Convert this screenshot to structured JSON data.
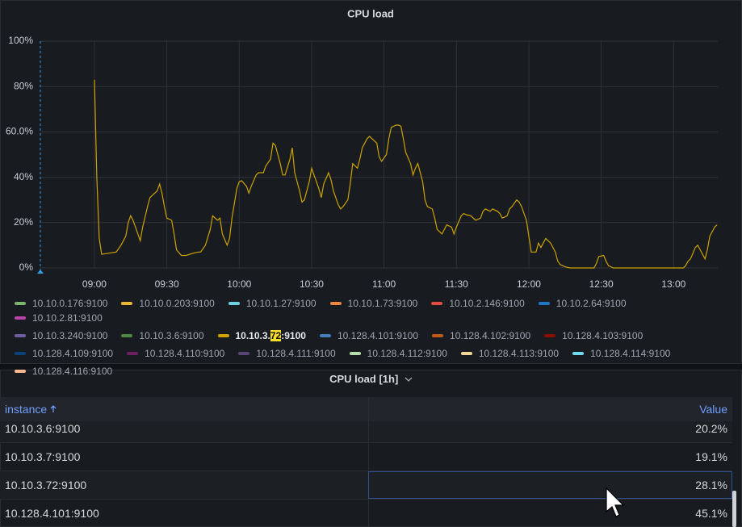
{
  "chart_data": {
    "type": "line",
    "title": "CPU load",
    "xlim": [
      517.6,
      798.3
    ],
    "xticks": [
      {
        "value": 540,
        "label": "09:00"
      },
      {
        "value": 570,
        "label": "09:30"
      },
      {
        "value": 600,
        "label": "10:00"
      },
      {
        "value": 630,
        "label": "10:30"
      },
      {
        "value": 660,
        "label": "11:00"
      },
      {
        "value": 690,
        "label": "11:30"
      },
      {
        "value": 720,
        "label": "12:00"
      },
      {
        "value": 750,
        "label": "12:30"
      },
      {
        "value": 780,
        "label": "13:00"
      }
    ],
    "ylim": [
      0,
      100
    ],
    "yticks": [
      {
        "value": 0,
        "label": "0%"
      },
      {
        "value": 20,
        "label": "20%"
      },
      {
        "value": 40,
        "label": "40%"
      },
      {
        "value": 60,
        "label": "60.0%"
      },
      {
        "value": 80,
        "label": "80%"
      },
      {
        "value": 100,
        "label": "100%"
      }
    ],
    "grid": true,
    "legend_search": "72",
    "series": [
      {
        "name": "10.10.0.176:9100",
        "color": "#7EB26D"
      },
      {
        "name": "10.10.0.203:9100",
        "color": "#EAB839"
      },
      {
        "name": "10.10.1.27:9100",
        "color": "#6ED0E0"
      },
      {
        "name": "10.10.1.73:9100",
        "color": "#EF843C"
      },
      {
        "name": "10.10.2.146:9100",
        "color": "#E24D42"
      },
      {
        "name": "10.10.2.64:9100",
        "color": "#1F78C1"
      },
      {
        "name": "10.10.2.81:9100",
        "color": "#BA43A9"
      },
      {
        "name": "10.10.3.240:9100",
        "color": "#705DA0"
      },
      {
        "name": "10.10.3.6:9100",
        "color": "#508642"
      },
      {
        "name": "10.10.3.72:9100",
        "color": "#CCA300",
        "x": [
          540,
          541,
          542,
          543,
          546,
          549,
          551,
          553,
          554,
          555,
          556,
          558,
          559,
          560,
          562,
          563,
          564,
          566,
          567,
          568,
          569,
          570,
          572,
          573,
          574,
          576,
          578,
          581,
          583,
          584,
          586,
          588,
          589,
          591,
          592,
          593,
          595,
          596,
          597,
          599,
          600,
          601,
          603,
          604,
          605,
          607,
          608,
          610,
          611,
          613,
          614,
          615,
          617,
          618,
          619,
          621,
          622,
          623,
          625,
          626,
          627,
          629,
          630,
          631,
          633,
          634,
          635,
          637,
          638,
          639,
          641,
          642,
          643,
          645,
          646,
          647,
          649,
          650,
          651,
          653,
          654,
          655,
          657,
          658,
          659,
          661,
          662,
          663,
          665,
          666,
          667,
          668,
          669,
          671,
          672,
          673,
          674,
          676,
          677,
          678,
          680,
          681,
          682,
          684,
          685,
          686,
          688,
          689,
          690,
          692,
          693,
          694,
          696,
          697,
          698,
          700,
          701,
          702,
          704,
          705,
          707,
          708,
          709,
          711,
          712,
          713,
          715,
          716,
          717,
          719,
          720,
          721,
          723,
          724,
          725,
          727,
          728,
          729,
          731,
          732,
          733,
          735,
          737,
          747,
          748,
          749,
          751,
          752,
          753,
          755,
          784,
          785,
          786,
          787,
          789,
          790,
          791,
          793,
          794,
          795,
          797,
          798
        ],
        "values": [
          83,
          40,
          13,
          6,
          6.5,
          7,
          10,
          14,
          20,
          23,
          21,
          15,
          12,
          18,
          27,
          31,
          32,
          34,
          37,
          33,
          27,
          22,
          21,
          15,
          8,
          5.5,
          5.5,
          6.5,
          7,
          7,
          10,
          17,
          23,
          21,
          22,
          15,
          10,
          13,
          22,
          35,
          38,
          38.5,
          36,
          33,
          36,
          41,
          42,
          42,
          45,
          48,
          55,
          54,
          46,
          41,
          41,
          48,
          53,
          42,
          34,
          29,
          30,
          38,
          44,
          41,
          35,
          31,
          37,
          42,
          39,
          34,
          28,
          26,
          27,
          30,
          37,
          46,
          44,
          48,
          53,
          57,
          58,
          57,
          55,
          49,
          47,
          50,
          57,
          62,
          63,
          63,
          62.5,
          57,
          51,
          46,
          41,
          44,
          46,
          38,
          30,
          27,
          26,
          22,
          17,
          15,
          17,
          19,
          18,
          15,
          18,
          23,
          24,
          23.5,
          23,
          22,
          21,
          22,
          25,
          26,
          25,
          26,
          25,
          24,
          22,
          23,
          26,
          27,
          30,
          29,
          27,
          21,
          14,
          7,
          7,
          11,
          9,
          13,
          12,
          11,
          7,
          3,
          1.5,
          0.5,
          0,
          0,
          2,
          5,
          5.5,
          3,
          1,
          0,
          0,
          1,
          3,
          4,
          9,
          10,
          8,
          4,
          8,
          14,
          18,
          19
        ]
      },
      {
        "name": "10.128.4.101:9100",
        "color": "#447EBC"
      },
      {
        "name": "10.128.4.102:9100",
        "color": "#C15C17"
      },
      {
        "name": "10.128.4.103:9100",
        "color": "#890F02"
      },
      {
        "name": "10.128.4.109:9100",
        "color": "#0A437C"
      },
      {
        "name": "10.128.4.110:9100",
        "color": "#6D1F62"
      },
      {
        "name": "10.128.4.111:9100",
        "color": "#584477"
      },
      {
        "name": "10.128.4.112:9100",
        "color": "#B7DBAB"
      },
      {
        "name": "10.128.4.113:9100",
        "color": "#F4D598"
      },
      {
        "name": "10.128.4.114:9100",
        "color": "#70DBED"
      },
      {
        "name": "10.128.4.116:9100",
        "color": "#F9BA8F"
      }
    ]
  },
  "table": {
    "title": "CPU load [1h]",
    "columns": [
      "instance",
      "Value"
    ],
    "rows": [
      [
        "10.10.3.6:9100",
        "20.2%"
      ],
      [
        "10.10.3.7:9100",
        "19.1%"
      ],
      [
        "10.10.3.72:9100",
        "28.1%"
      ],
      [
        "10.128.4.101:9100",
        "45.1%"
      ]
    ]
  }
}
